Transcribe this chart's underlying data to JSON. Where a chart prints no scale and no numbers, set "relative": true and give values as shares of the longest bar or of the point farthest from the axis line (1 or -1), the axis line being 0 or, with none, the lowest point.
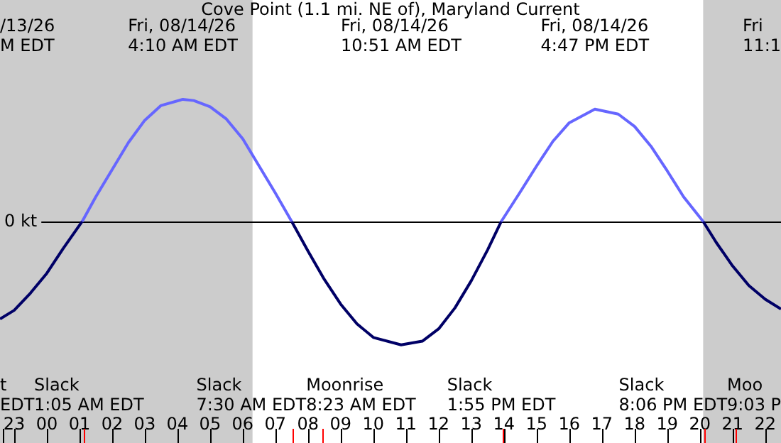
{
  "chart_data": {
    "type": "line",
    "title": "Cove Point (1.1 mi. NE of), Maryland Current",
    "relative": true,
    "marker": "none",
    "xlim": [
      "--08-13T22:34",
      "--08-14T22:29"
    ],
    "xticks": [
      {
        "value": "--08-13T23:00",
        "label": "23"
      },
      {
        "value": "--08-14T00:00",
        "label": "00"
      },
      {
        "value": "--08-14T01:00",
        "label": "01"
      },
      {
        "value": "--08-14T02:00",
        "label": "02"
      },
      {
        "value": "--08-14T03:00",
        "label": "03"
      },
      {
        "value": "--08-14T04:00",
        "label": "04"
      },
      {
        "value": "--08-14T05:00",
        "label": "05"
      },
      {
        "value": "--08-14T06:00",
        "label": "06"
      },
      {
        "value": "--08-14T07:00",
        "label": "07"
      },
      {
        "value": "--08-14T08:00",
        "label": "08"
      },
      {
        "value": "--08-14T09:00",
        "label": "09"
      },
      {
        "value": "--08-14T10:00",
        "label": "10"
      },
      {
        "value": "--08-14T11:00",
        "label": "11"
      },
      {
        "value": "--08-14T12:00",
        "label": "12"
      },
      {
        "value": "--08-14T13:00",
        "label": "13"
      },
      {
        "value": "--08-14T14:00",
        "label": "14"
      },
      {
        "value": "--08-14T15:00",
        "label": "15"
      },
      {
        "value": "--08-14T16:00",
        "label": "16"
      },
      {
        "value": "--08-14T17:00",
        "label": "17"
      },
      {
        "value": "--08-14T18:00",
        "label": "18"
      },
      {
        "value": "--08-14T19:00",
        "label": "19"
      },
      {
        "value": "--08-14T20:00",
        "label": "20"
      },
      {
        "value": "--08-14T21:00",
        "label": "21"
      },
      {
        "value": "--08-14T22:00",
        "label": "22"
      }
    ],
    "series": [
      {
        "color": "#6666ff",
        "x": [
          "--08-14T01:05",
          "--08-14T01:30",
          "--08-14T02:00",
          "--08-14T02:30",
          "--08-14T03:00",
          "--08-14T03:30",
          "--08-14T04:10",
          "--08-14T04:30",
          "--08-14T05:00",
          "--08-14T05:30",
          "--08-14T06:00",
          "--08-14T06:30",
          "--08-14T07:00",
          "--08-14T07:30",
          "--08-14T10:51",
          "--08-14T13:55",
          "--08-14T14:30",
          "--08-14T15:00",
          "--08-14T15:30",
          "--08-14T16:00",
          "--08-14T16:47",
          "--08-14T17:30",
          "--08-14T18:00",
          "--08-14T18:30",
          "--08-14T19:00",
          "--08-14T19:30",
          "--08-14T20:06"
        ],
        "values": [
          0,
          0.2,
          0.42,
          0.64,
          0.82,
          0.94,
          0.99,
          0.98,
          0.93,
          0.83,
          0.67,
          0.45,
          0.23,
          0,
          null,
          0,
          0.24,
          0.45,
          0.65,
          0.8,
          0.91,
          0.87,
          0.77,
          0.61,
          0.41,
          0.2,
          0
        ]
      },
      {
        "color": "#000066",
        "x": [
          "--08-13T22:34",
          "--08-13T23:00",
          "--08-13T23:30",
          "--08-14T00:00",
          "--08-14T00:30",
          "--08-14T01:05",
          "--08-14T04:10",
          "--08-14T07:30",
          "--08-14T08:00",
          "--08-14T08:30",
          "--08-14T09:00",
          "--08-14T09:30",
          "--08-14T10:00",
          "--08-14T10:51",
          "--08-14T11:30",
          "--08-14T12:00",
          "--08-14T12:30",
          "--08-14T13:00",
          "--08-14T13:30",
          "--08-14T13:55",
          "--08-14T16:47",
          "--08-14T20:06",
          "--08-14T20:30",
          "--08-14T21:00",
          "--08-14T21:30",
          "--08-14T22:00",
          "--08-14T22:29"
        ],
        "values": [
          -0.79,
          -0.72,
          -0.58,
          -0.42,
          -0.22,
          0,
          null,
          0,
          -0.24,
          -0.47,
          -0.67,
          -0.83,
          -0.94,
          -1,
          -0.97,
          -0.87,
          -0.7,
          -0.48,
          -0.23,
          0,
          null,
          0,
          -0.17,
          -0.36,
          -0.52,
          -0.63,
          -0.71
        ]
      }
    ],
    "ref_lines": [
      {
        "axis": "y",
        "value": 0,
        "label": "0 kt",
        "color": "#000000"
      },
      {
        "axis": "x",
        "value": "--08-13T22:36",
        "label": "t\nEDT",
        "color": "#000000"
      },
      {
        "axis": "x",
        "value": "--08-14T01:05",
        "label": "Slack\n1:05 AM EDT",
        "color": "#ff0000"
      },
      {
        "axis": "x",
        "value": "--08-14T07:30",
        "label": "Slack\n7:30 AM EDT",
        "color": "#ff0000"
      },
      {
        "axis": "x",
        "value": "--08-14T08:23",
        "label": "Moonrise\n8:23 AM EDT",
        "color": "#ff0000"
      },
      {
        "axis": "x",
        "value": "--08-14T13:55",
        "label": "Slack\n1:55 PM EDT",
        "color": "#ff0000"
      },
      {
        "axis": "x",
        "value": "--08-14T20:06",
        "label": "Slack\n8:06 PM EDT",
        "color": "#ff0000"
      },
      {
        "axis": "x",
        "value": "--08-14T21:03",
        "label": "Moo\n9:03 P",
        "color": "#ff0000"
      }
    ],
    "bands": [
      {
        "axis": "x",
        "from": "--08-13T22:34",
        "to": "--08-14T06:18",
        "color": "#cccccc"
      },
      {
        "axis": "x",
        "from": "--08-14T20:06",
        "to": "--08-14T22:29",
        "color": "#cccccc"
      }
    ],
    "annotations": [
      "/13/26\nM EDT",
      "Fri, 08/14/26\n4:10 AM EDT",
      "Fri, 08/14/26\n10:51 AM EDT",
      "Fri, 08/14/26\n4:47 PM EDT",
      "Fri\n11:1"
    ]
  }
}
